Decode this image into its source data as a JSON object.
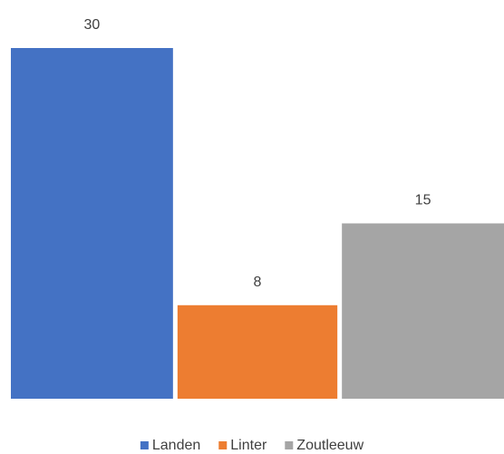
{
  "chart_data": {
    "type": "bar",
    "categories": [
      null
    ],
    "series": [
      {
        "name": "Landen",
        "color": "#4472c4",
        "values": [
          30
        ]
      },
      {
        "name": "Linter",
        "color": "#ed7d31",
        "values": [
          8
        ]
      },
      {
        "name": "Zoutleeuw",
        "color": "#a5a5a5",
        "values": [
          15
        ]
      }
    ],
    "legend": "bottom"
  }
}
